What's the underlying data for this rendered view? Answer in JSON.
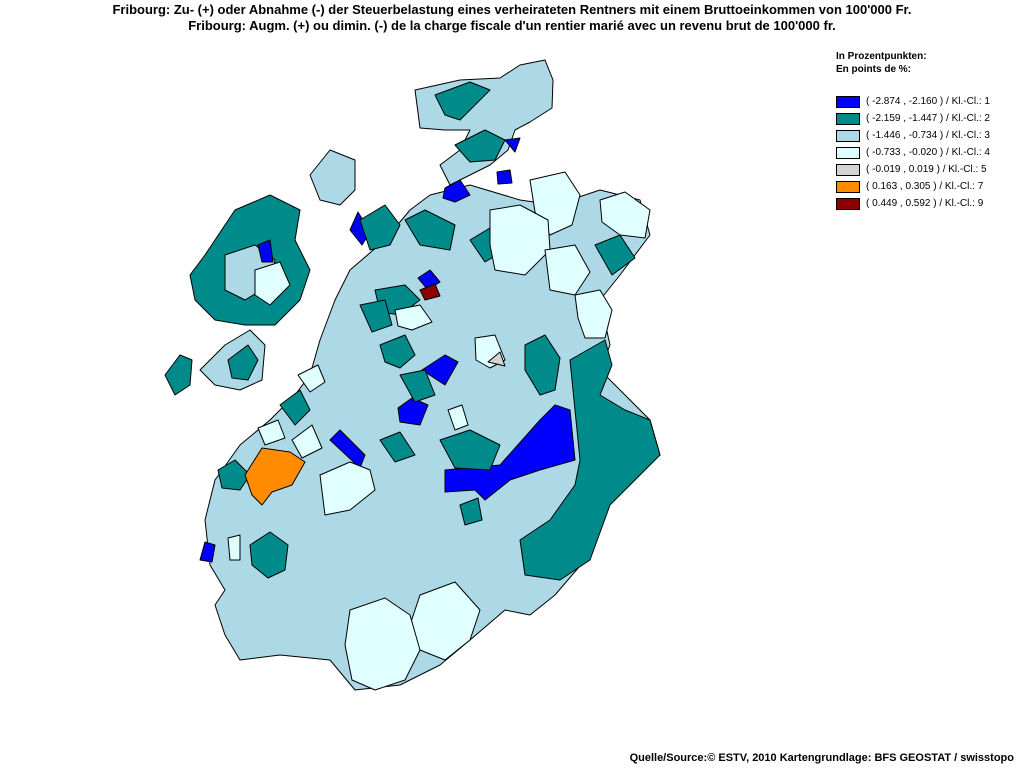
{
  "titles": {
    "de": "Fribourg: Zu- (+) oder Abnahme (-) der Steuerbelastung eines verheirateten Rentners mit einem Bruttoeinkommen von 100'000 Fr.",
    "fr": "Fribourg: Augm. (+) ou dimin. (-) de la charge fiscale d'un rentier marié avec un revenu brut de 100'000 fr."
  },
  "legend": {
    "heading_de": "In Prozentpunkten:",
    "heading_fr": "En points de %:",
    "items": [
      {
        "label": "( -2.874 , -2.160 ) / Kl.-Cl.: 1",
        "color": "#0000ff"
      },
      {
        "label": "( -2.159 , -1.447 ) / Kl.-Cl.: 2",
        "color": "#008b8b"
      },
      {
        "label": "( -1.446 , -0.734 ) / Kl.-Cl.: 3",
        "color": "#add8e6"
      },
      {
        "label": "( -0.733 , -0.020 ) / Kl.-Cl.: 4",
        "color": "#e0ffff"
      },
      {
        "label": "( -0.019 , 0.019 ) / Kl.-Cl.: 5",
        "color": "#d3d3d3"
      },
      {
        "label": "( 0.163 , 0.305 ) / Kl.-Cl.: 7",
        "color": "#ff8c00"
      },
      {
        "label": "( 0.449 , 0.592 ) / Kl.-Cl.: 9",
        "color": "#8b0000"
      }
    ]
  },
  "source": "Quelle/Source:© ESTV, 2010 Kartengrundlage: BFS GEOSTAT / swisstopo"
}
